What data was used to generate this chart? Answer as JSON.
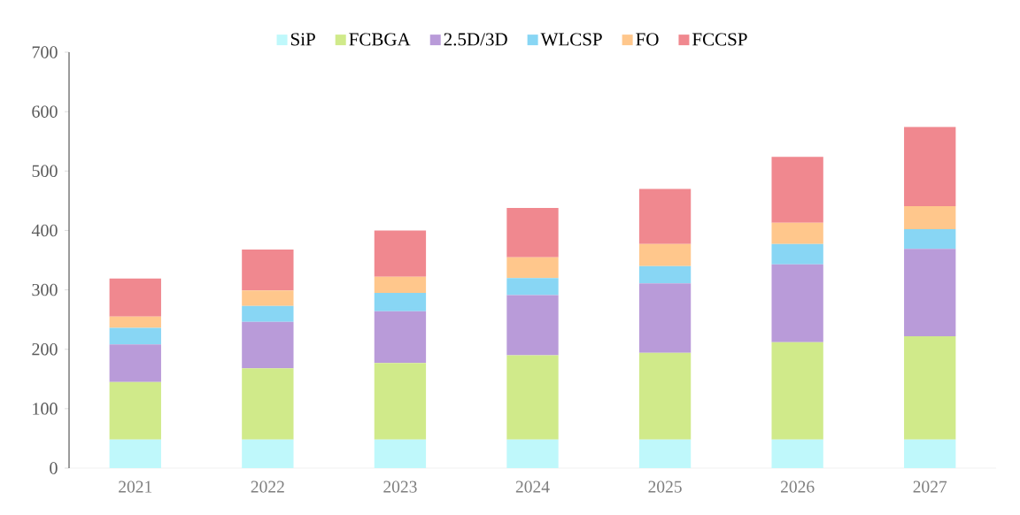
{
  "chart_data": {
    "type": "bar",
    "stacked": true,
    "categories": [
      "2021",
      "2022",
      "2023",
      "2024",
      "2025",
      "2026",
      "2027"
    ],
    "series": [
      {
        "name": "SiP",
        "color": "#bff8fb",
        "values": [
          48,
          48,
          48,
          48,
          48,
          48,
          48
        ]
      },
      {
        "name": "FCBGA",
        "color": "#d0ea8a",
        "values": [
          97,
          120,
          129,
          142,
          146,
          164,
          174
        ]
      },
      {
        "name": "2.5D/3D",
        "color": "#b99bd9",
        "values": [
          63,
          78,
          87,
          101,
          117,
          131,
          147
        ]
      },
      {
        "name": "WLCSP",
        "color": "#88d6f4",
        "values": [
          28,
          27,
          31,
          29,
          29,
          34,
          33
        ]
      },
      {
        "name": "FO",
        "color": "#ffc78c",
        "values": [
          19,
          26,
          27,
          35,
          37,
          36,
          39
        ]
      },
      {
        "name": "FCCSP",
        "color": "#f0888f",
        "values": [
          64,
          69,
          78,
          83,
          93,
          111,
          133
        ]
      }
    ],
    "ylim": [
      0,
      700
    ],
    "yticks": [
      0,
      100,
      200,
      300,
      400,
      500,
      600,
      700
    ],
    "legend": "top",
    "grid": false
  }
}
